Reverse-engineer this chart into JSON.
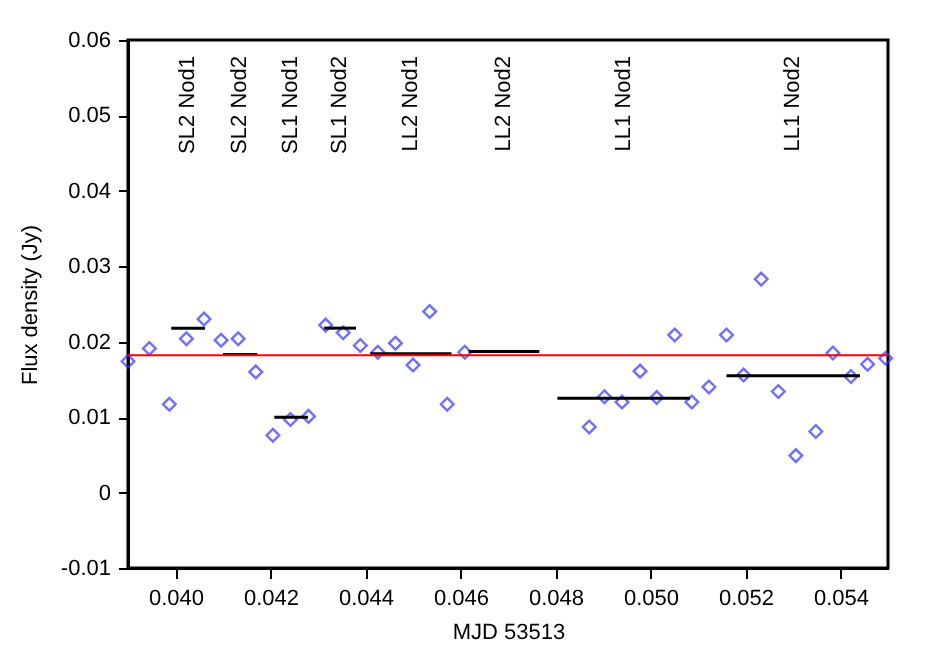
{
  "chart_data": {
    "type": "scatter",
    "xlabel": "MJD 53513",
    "ylabel": "Flux density (Jy)",
    "xlim": [
      0.039,
      0.055
    ],
    "xticks": [
      {
        "value": 0.04,
        "label": "0.040"
      },
      {
        "value": 0.042,
        "label": "0.042"
      },
      {
        "value": 0.044,
        "label": "0.044"
      },
      {
        "value": 0.046,
        "label": "0.046"
      },
      {
        "value": 0.048,
        "label": "0.048"
      },
      {
        "value": 0.05,
        "label": "0.050"
      },
      {
        "value": 0.052,
        "label": "0.052"
      },
      {
        "value": 0.054,
        "label": "0.054"
      }
    ],
    "ylim": [
      -0.01,
      0.06
    ],
    "yticks": [
      -0.01,
      0,
      0.01,
      0.02,
      0.03,
      0.04,
      0.05,
      0.06
    ],
    "grid": false,
    "series": [
      {
        "color": "#3333ff",
        "marker": "diamond",
        "x": [
          0.039,
          0.03945,
          0.03987,
          0.04023,
          0.0406,
          0.04096,
          0.04132,
          0.04169,
          0.04205,
          0.04242,
          0.0428,
          0.04316,
          0.04353,
          0.04389,
          0.04426,
          0.04463,
          0.045,
          0.04535,
          0.04572,
          0.04609,
          0.04871,
          0.04903,
          0.0494,
          0.04978,
          0.05013,
          0.05051,
          0.05087,
          0.05123,
          0.0516,
          0.05196,
          0.05233,
          0.05269,
          0.05306,
          0.05348,
          0.05384,
          0.05422,
          0.05457,
          0.05495
        ],
        "values": [
          0.0174,
          0.0191,
          0.0117,
          0.0204,
          0.023,
          0.0202,
          0.0204,
          0.016,
          0.0076,
          0.0097,
          0.0101,
          0.0222,
          0.0212,
          0.0195,
          0.0186,
          0.0198,
          0.0169,
          0.024,
          0.0117,
          0.0186,
          0.0087,
          0.0127,
          0.012,
          0.0161,
          0.0126,
          0.0209,
          0.012,
          0.014,
          0.0209,
          0.0156,
          0.0283,
          0.0134,
          0.0049,
          0.0081,
          0.0185,
          0.0154,
          0.017,
          0.0178
        ]
      },
      {
        "type": "line",
        "color": "#000000",
        "x": [
          0.03991,
          0.04062
        ],
        "values": [
          0.0218,
          0.0218
        ]
      },
      {
        "type": "line",
        "color": "#000000",
        "x": [
          0.041,
          0.04172
        ],
        "values": [
          0.0183,
          0.0183
        ]
      },
      {
        "type": "line",
        "color": "#000000",
        "x": [
          0.04208,
          0.04279
        ],
        "values": [
          0.01,
          0.01
        ]
      },
      {
        "type": "line",
        "color": "#000000",
        "x": [
          0.04313,
          0.0438
        ],
        "values": [
          0.0218,
          0.0218
        ]
      },
      {
        "type": "line",
        "color": "#000000",
        "x": [
          0.0441,
          0.04581
        ],
        "values": [
          0.0184,
          0.0184
        ]
      },
      {
        "type": "line",
        "color": "#000000",
        "x": [
          0.04617,
          0.04766
        ],
        "values": [
          0.0187,
          0.0187
        ]
      },
      {
        "type": "line",
        "color": "#000000",
        "x": [
          0.04804,
          0.05083
        ],
        "values": [
          0.0125,
          0.0125
        ]
      },
      {
        "type": "line",
        "color": "#000000",
        "x": [
          0.0516,
          0.05441
        ],
        "values": [
          0.0155,
          0.0155
        ]
      }
    ],
    "ref_lines": [
      {
        "axis": "y",
        "value": 0.0182,
        "color": "#ff0000"
      }
    ],
    "annotations": [
      "SL2 Nod1",
      "SL2 Nod2",
      "SL1 Nod1",
      "SL1 Nod2",
      "LL2 Nod1",
      "LL2 Nod2",
      "LL1 Nod1",
      "LL1 Nod2"
    ]
  }
}
